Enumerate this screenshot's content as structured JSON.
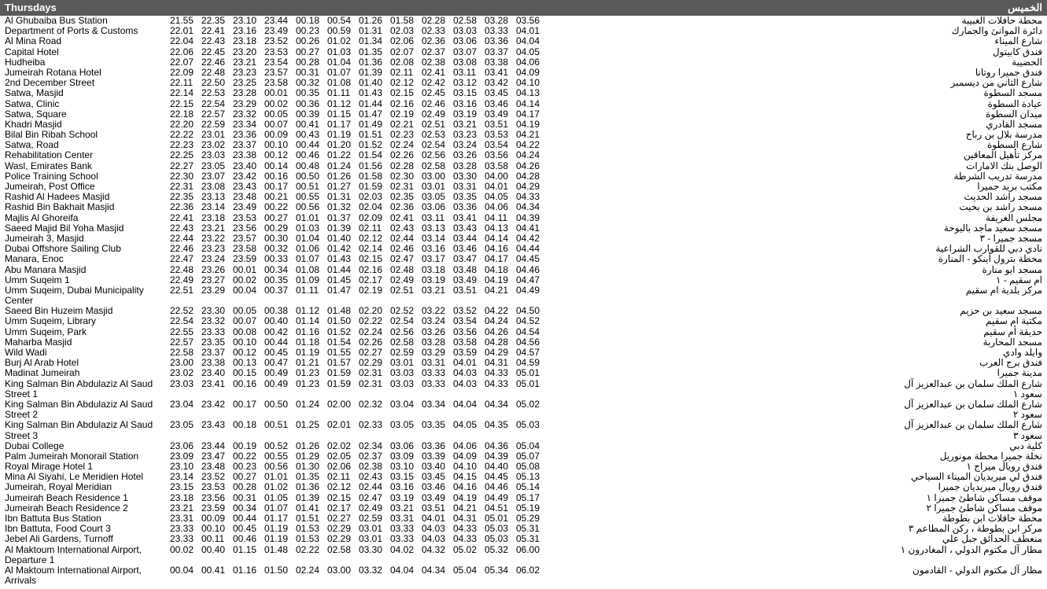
{
  "header": {
    "title_en": "Thursdays",
    "title_ar": "الخميس"
  },
  "columns": 12,
  "rows": [
    {
      "en": "Al Ghubaiba Bus Station",
      "ar": "محطة حافلات الغبيبة",
      "times": [
        "21.55",
        "22.35",
        "23.10",
        "23.44",
        "00.18",
        "00.54",
        "01.26",
        "01.58",
        "02.28",
        "02.58",
        "03.28",
        "03.56"
      ]
    },
    {
      "en": "Department of Ports & Customs",
      "ar": "دائرة الموانئ والجمارك",
      "times": [
        "22.01",
        "22.41",
        "23.16",
        "23.49",
        "00.23",
        "00.59",
        "01.31",
        "02.03",
        "02.33",
        "03.03",
        "03.33",
        "04.01"
      ]
    },
    {
      "en": "Al Mina Road",
      "ar": "شارع الميناء",
      "times": [
        "22.04",
        "22.43",
        "23.18",
        "23.52",
        "00.26",
        "01.02",
        "01.34",
        "02.06",
        "02.36",
        "03.06",
        "03.36",
        "04.04"
      ]
    },
    {
      "en": "Capital Hotel",
      "ar": "فندق كابيتول",
      "times": [
        "22.06",
        "22.45",
        "23.20",
        "23.53",
        "00.27",
        "01.03",
        "01.35",
        "02.07",
        "02.37",
        "03.07",
        "03.37",
        "04.05"
      ]
    },
    {
      "en": "Hudheiba",
      "ar": "الحضيبة",
      "times": [
        "22.07",
        "22.46",
        "23.21",
        "23.54",
        "00.28",
        "01.04",
        "01.36",
        "02.08",
        "02.38",
        "03.08",
        "03.38",
        "04.06"
      ]
    },
    {
      "en": "Jumeirah Rotana Hotel",
      "ar": "فندق جميرا روتانا",
      "times": [
        "22.09",
        "22.48",
        "23.23",
        "23.57",
        "00.31",
        "01.07",
        "01.39",
        "02.11",
        "02.41",
        "03.11",
        "03.41",
        "04.09"
      ]
    },
    {
      "en": "2nd December Street",
      "ar": "شارع الثاني من ديسمبر",
      "times": [
        "22.11",
        "22.50",
        "23.25",
        "23.58",
        "00.32",
        "01.08",
        "01.40",
        "02.12",
        "02.42",
        "03.12",
        "03.42",
        "04.10"
      ]
    },
    {
      "en": "Satwa, Masjid",
      "ar": "مسجد السطوة",
      "times": [
        "22.14",
        "22.53",
        "23.28",
        "00.01",
        "00.35",
        "01.11",
        "01.43",
        "02.15",
        "02.45",
        "03.15",
        "03.45",
        "04.13"
      ]
    },
    {
      "en": "Satwa, Clinic",
      "ar": "عيادة السطوة",
      "times": [
        "22.15",
        "22.54",
        "23.29",
        "00.02",
        "00.36",
        "01.12",
        "01.44",
        "02.16",
        "02.46",
        "03.16",
        "03.46",
        "04.14"
      ]
    },
    {
      "en": "Satwa, Square",
      "ar": "ميدان السطوة",
      "times": [
        "22.18",
        "22.57",
        "23.32",
        "00.05",
        "00.39",
        "01.15",
        "01.47",
        "02.19",
        "02.49",
        "03.19",
        "03.49",
        "04.17"
      ]
    },
    {
      "en": "Khadri Masjid",
      "ar": "مسجد القادري",
      "times": [
        "22.20",
        "22.59",
        "23.34",
        "00.07",
        "00.41",
        "01.17",
        "01.49",
        "02.21",
        "02.51",
        "03.21",
        "03.51",
        "04.19"
      ]
    },
    {
      "en": "Bilal Bin Ribah School",
      "ar": "مدرسة بلال بن رباح",
      "times": [
        "22.22",
        "23.01",
        "23.36",
        "00.09",
        "00.43",
        "01.19",
        "01.51",
        "02.23",
        "02.53",
        "03.23",
        "03.53",
        "04.21"
      ]
    },
    {
      "en": "Satwa, Road",
      "ar": "شارع السطوة",
      "times": [
        "22.23",
        "23.02",
        "23.37",
        "00.10",
        "00.44",
        "01.20",
        "01.52",
        "02.24",
        "02.54",
        "03.24",
        "03.54",
        "04.22"
      ]
    },
    {
      "en": "Rehabilitation Center",
      "ar": "مركز تأهيل المعاقين",
      "times": [
        "22.25",
        "23.03",
        "23.38",
        "00.12",
        "00.46",
        "01.22",
        "01.54",
        "02.26",
        "02.56",
        "03.26",
        "03.56",
        "04.24"
      ]
    },
    {
      "en": "Wasl, Emirates Bank",
      "ar": "الوصل بنك الامارات",
      "times": [
        "22.27",
        "23.05",
        "23.40",
        "00.14",
        "00.48",
        "01.24",
        "01.56",
        "02.28",
        "02.58",
        "03.28",
        "03.58",
        "04.26"
      ]
    },
    {
      "en": "Police Training School",
      "ar": "مدرسة تدريب الشرطة",
      "times": [
        "22.30",
        "23.07",
        "23.42",
        "00.16",
        "00.50",
        "01.26",
        "01.58",
        "02.30",
        "03.00",
        "03.30",
        "04.00",
        "04.28"
      ]
    },
    {
      "en": "Jumeirah, Post Office",
      "ar": "مكتب بريد جميرا",
      "times": [
        "22.31",
        "23.08",
        "23.43",
        "00.17",
        "00.51",
        "01.27",
        "01.59",
        "02.31",
        "03.01",
        "03.31",
        "04.01",
        "04.29"
      ]
    },
    {
      "en": "Rashid Al Hadees Masjid",
      "ar": "مسجد راشد الحديث",
      "times": [
        "22.35",
        "23.13",
        "23.48",
        "00.21",
        "00.55",
        "01.31",
        "02.03",
        "02.35",
        "03.05",
        "03.35",
        "04.05",
        "04.33"
      ]
    },
    {
      "en": "Rashid Bin Bakhait Masjid",
      "ar": "مسجد راشد بن بخيت",
      "times": [
        "22.36",
        "23.14",
        "23.49",
        "00.22",
        "00.56",
        "01.32",
        "02.04",
        "02.36",
        "03.06",
        "03.36",
        "04.06",
        "04.34"
      ]
    },
    {
      "en": "Majlis Al Ghoreifa",
      "ar": "مجلس الغريفة",
      "times": [
        "22.41",
        "23.18",
        "23.53",
        "00.27",
        "01.01",
        "01.37",
        "02.09",
        "02.41",
        "03.11",
        "03.41",
        "04.11",
        "04.39"
      ]
    },
    {
      "en": "Saeed Majid Bil Yoha Masjid",
      "ar": "مسجد سعيد ماجد باليوحة",
      "times": [
        "22.43",
        "23.21",
        "23.56",
        "00.29",
        "01.03",
        "01.39",
        "02.11",
        "02.43",
        "03.13",
        "03.43",
        "04.13",
        "04.41"
      ]
    },
    {
      "en": "Jumeirah 3, Masjid",
      "ar": "مسجد جميرا - ٣",
      "times": [
        "22.44",
        "23.22",
        "23.57",
        "00.30",
        "01.04",
        "01.40",
        "02.12",
        "02.44",
        "03.14",
        "03.44",
        "04.14",
        "04.42"
      ]
    },
    {
      "en": "Dubai Offshore Sailing Club",
      "ar": "نادي دبي للقوارب الشراعية",
      "times": [
        "22.46",
        "23.23",
        "23.58",
        "00.32",
        "01.06",
        "01.42",
        "02.14",
        "02.46",
        "03.16",
        "03.46",
        "04.16",
        "04.44"
      ]
    },
    {
      "en": "Manara, Enoc",
      "ar": "محطة بترول أينكو - المنارة",
      "times": [
        "22.47",
        "23.24",
        "23.59",
        "00.33",
        "01.07",
        "01.43",
        "02.15",
        "02.47",
        "03.17",
        "03.47",
        "04.17",
        "04.45"
      ]
    },
    {
      "en": "Abu Manara Masjid",
      "ar": "مسجد ابو منارة",
      "times": [
        "22.48",
        "23.26",
        "00.01",
        "00.34",
        "01.08",
        "01.44",
        "02.16",
        "02.48",
        "03.18",
        "03.48",
        "04.18",
        "04.46"
      ]
    },
    {
      "en": "Umm Suqeim 1",
      "ar": "ام سقيم - ١",
      "times": [
        "22.49",
        "23.27",
        "00.02",
        "00.35",
        "01.09",
        "01.45",
        "02.17",
        "02.49",
        "03.19",
        "03.49",
        "04.19",
        "04.47"
      ]
    },
    {
      "en": "Umm Suqeim, Dubai Municipality Center",
      "ar": "مركز بلدية ام سقيم",
      "times": [
        "22.51",
        "23.29",
        "00.04",
        "00.37",
        "01.11",
        "01.47",
        "02.19",
        "02.51",
        "03.21",
        "03.51",
        "04.21",
        "04.49"
      ]
    },
    {
      "en": "Saeed Bin Huzeim Masjid",
      "ar": "مسجد سعيد بن حزيم",
      "times": [
        "22.52",
        "23.30",
        "00.05",
        "00.38",
        "01.12",
        "01.48",
        "02.20",
        "02.52",
        "03.22",
        "03.52",
        "04.22",
        "04.50"
      ]
    },
    {
      "en": "Umm Suqeim, Library",
      "ar": "مكتبة ام سقيم",
      "times": [
        "22.54",
        "23.32",
        "00.07",
        "00.40",
        "01.14",
        "01.50",
        "02.22",
        "02.54",
        "03.24",
        "03.54",
        "04.24",
        "04.52"
      ]
    },
    {
      "en": "Umm Suqeim, Park",
      "ar": "حديقة أم سقيم",
      "times": [
        "22.55",
        "23.33",
        "00.08",
        "00.42",
        "01.16",
        "01.52",
        "02.24",
        "02.56",
        "03.26",
        "03.56",
        "04.26",
        "04.54"
      ]
    },
    {
      "en": "Maharba Masjid",
      "ar": "مسجد المحاربة",
      "times": [
        "22.57",
        "23.35",
        "00.10",
        "00.44",
        "01.18",
        "01.54",
        "02.26",
        "02.58",
        "03.28",
        "03.58",
        "04.28",
        "04.56"
      ]
    },
    {
      "en": "Wild Wadi",
      "ar": "وايلد وادي",
      "times": [
        "22.58",
        "23.37",
        "00.12",
        "00.45",
        "01.19",
        "01.55",
        "02.27",
        "02.59",
        "03.29",
        "03.59",
        "04.29",
        "04.57"
      ]
    },
    {
      "en": "Burj Al Arab Hotel",
      "ar": "فندق برج العرب",
      "times": [
        "23.00",
        "23.38",
        "00.13",
        "00.47",
        "01.21",
        "01.57",
        "02.29",
        "03.01",
        "03.31",
        "04.01",
        "04.31",
        "04.59"
      ]
    },
    {
      "en": "Madinat Jumeirah",
      "ar": "مدينة جميرا",
      "times": [
        "23.02",
        "23.40",
        "00.15",
        "00.49",
        "01.23",
        "01.59",
        "02.31",
        "03.03",
        "03.33",
        "04.03",
        "04.33",
        "05.01"
      ]
    },
    {
      "en": "King Salman Bin Abdulaziz Al Saud Street 1",
      "ar": "شارع الملك سلمان بن عبدالعزيز آل سعود ١",
      "times": [
        "23.03",
        "23.41",
        "00.16",
        "00.49",
        "01.23",
        "01.59",
        "02.31",
        "03.03",
        "03.33",
        "04.03",
        "04.33",
        "05.01"
      ]
    },
    {
      "en": "King Salman Bin Abdulaziz Al Saud Street 2",
      "ar": "شارع الملك سلمان بن عبدالعزيز آل سعود ٢",
      "times": [
        "23.04",
        "23.42",
        "00.17",
        "00.50",
        "01.24",
        "02.00",
        "02.32",
        "03.04",
        "03.34",
        "04.04",
        "04.34",
        "05.02"
      ]
    },
    {
      "en": "King Salman Bin Abdulaziz Al Saud Street 3",
      "ar": "شارع الملك سلمان بن عبدالعزيز آل سعود ٣",
      "times": [
        "23.05",
        "23.43",
        "00.18",
        "00.51",
        "01.25",
        "02.01",
        "02.33",
        "03.05",
        "03.35",
        "04.05",
        "04.35",
        "05.03"
      ]
    },
    {
      "en": "Dubai College",
      "ar": "كلية دبي",
      "times": [
        "23.06",
        "23.44",
        "00.19",
        "00.52",
        "01.26",
        "02.02",
        "02.34",
        "03.06",
        "03.36",
        "04.06",
        "04.36",
        "05.04"
      ]
    },
    {
      "en": "Palm Jumeirah Monorail Station",
      "ar": "نخلة جميرا محطة مونوريل",
      "times": [
        "23.09",
        "23.47",
        "00.22",
        "00.55",
        "01.29",
        "02.05",
        "02.37",
        "03.09",
        "03.39",
        "04.09",
        "04.39",
        "05.07"
      ]
    },
    {
      "en": "Royal Mirage Hotel 1",
      "ar": "فندق رويال ميراج ١",
      "times": [
        "23.10",
        "23.48",
        "00.23",
        "00.56",
        "01.30",
        "02.06",
        "02.38",
        "03.10",
        "03.40",
        "04.10",
        "04.40",
        "05.08"
      ]
    },
    {
      "en": "Mina Al Siyahi, Le Meridien Hotel",
      "ar": "فندق لي ميريديان الميناء السياحي",
      "times": [
        "23.14",
        "23.52",
        "00.27",
        "01.01",
        "01.35",
        "02.11",
        "02.43",
        "03.15",
        "03.45",
        "04.15",
        "04.45",
        "05.13"
      ]
    },
    {
      "en": "Jumeirah, Royal Meridian",
      "ar": "فندق رويال ميريديان جميرا",
      "times": [
        "23.15",
        "23.53",
        "00.28",
        "01.02",
        "01.36",
        "02.12",
        "02.44",
        "03.16",
        "03.46",
        "04.16",
        "04.46",
        "05.14"
      ]
    },
    {
      "en": "Jumeirah Beach Residence 1",
      "ar": "موقف مساكن شاطئ جميرا ١",
      "times": [
        "23.18",
        "23.56",
        "00.31",
        "01.05",
        "01.39",
        "02.15",
        "02.47",
        "03.19",
        "03.49",
        "04.19",
        "04.49",
        "05.17"
      ]
    },
    {
      "en": "Jumeirah Beach Residence 2",
      "ar": "موقف مساكن شاطئ جميرا ٢",
      "times": [
        "23.21",
        "23.59",
        "00.34",
        "01.07",
        "01.41",
        "02.17",
        "02.49",
        "03.21",
        "03.51",
        "04.21",
        "04.51",
        "05.19"
      ]
    },
    {
      "en": "Ibn Battuta Bus Station",
      "ar": "محطة حافلات ابن بطوطة",
      "times": [
        "23.31",
        "00.09",
        "00.44",
        "01.17",
        "01.51",
        "02.27",
        "02.59",
        "03.31",
        "04.01",
        "04.31",
        "05.01",
        "05.29"
      ]
    },
    {
      "en": "Ibn Battuta, Food Court 3",
      "ar": "مركز ابن بطوطة ، ركن المطاعم ٣",
      "times": [
        "23.33",
        "00.10",
        "00.45",
        "01.19",
        "01.53",
        "02.29",
        "03.01",
        "03.33",
        "04.03",
        "04.33",
        "05.03",
        "05.31"
      ]
    },
    {
      "en": "Jebel Ali Gardens, Turnoff",
      "ar": "منعطف الحدائق جبل علي",
      "times": [
        "23.33",
        "00.11",
        "00.46",
        "01.19",
        "01.53",
        "02.29",
        "03.01",
        "03.33",
        "04.03",
        "04.33",
        "05.03",
        "05.31"
      ]
    },
    {
      "en": "Al Maktoum International Airport, Departure 1",
      "ar": "مطار آل مكتوم الدولي ، المغادرون ١",
      "times": [
        "00.02",
        "00.40",
        "01.15",
        "01.48",
        "02.22",
        "02.58",
        "03.30",
        "04.02",
        "04.32",
        "05.02",
        "05.32",
        "06.00"
      ]
    },
    {
      "en": "Al Maktoum International Airport, Arrivals",
      "ar": "مطار آل مكتوم الدولي - القادمون",
      "times": [
        "00.04",
        "00.41",
        "01.16",
        "01.50",
        "02.24",
        "03.00",
        "03.32",
        "04.04",
        "04.34",
        "05.04",
        "05.34",
        "06.02"
      ]
    }
  ]
}
